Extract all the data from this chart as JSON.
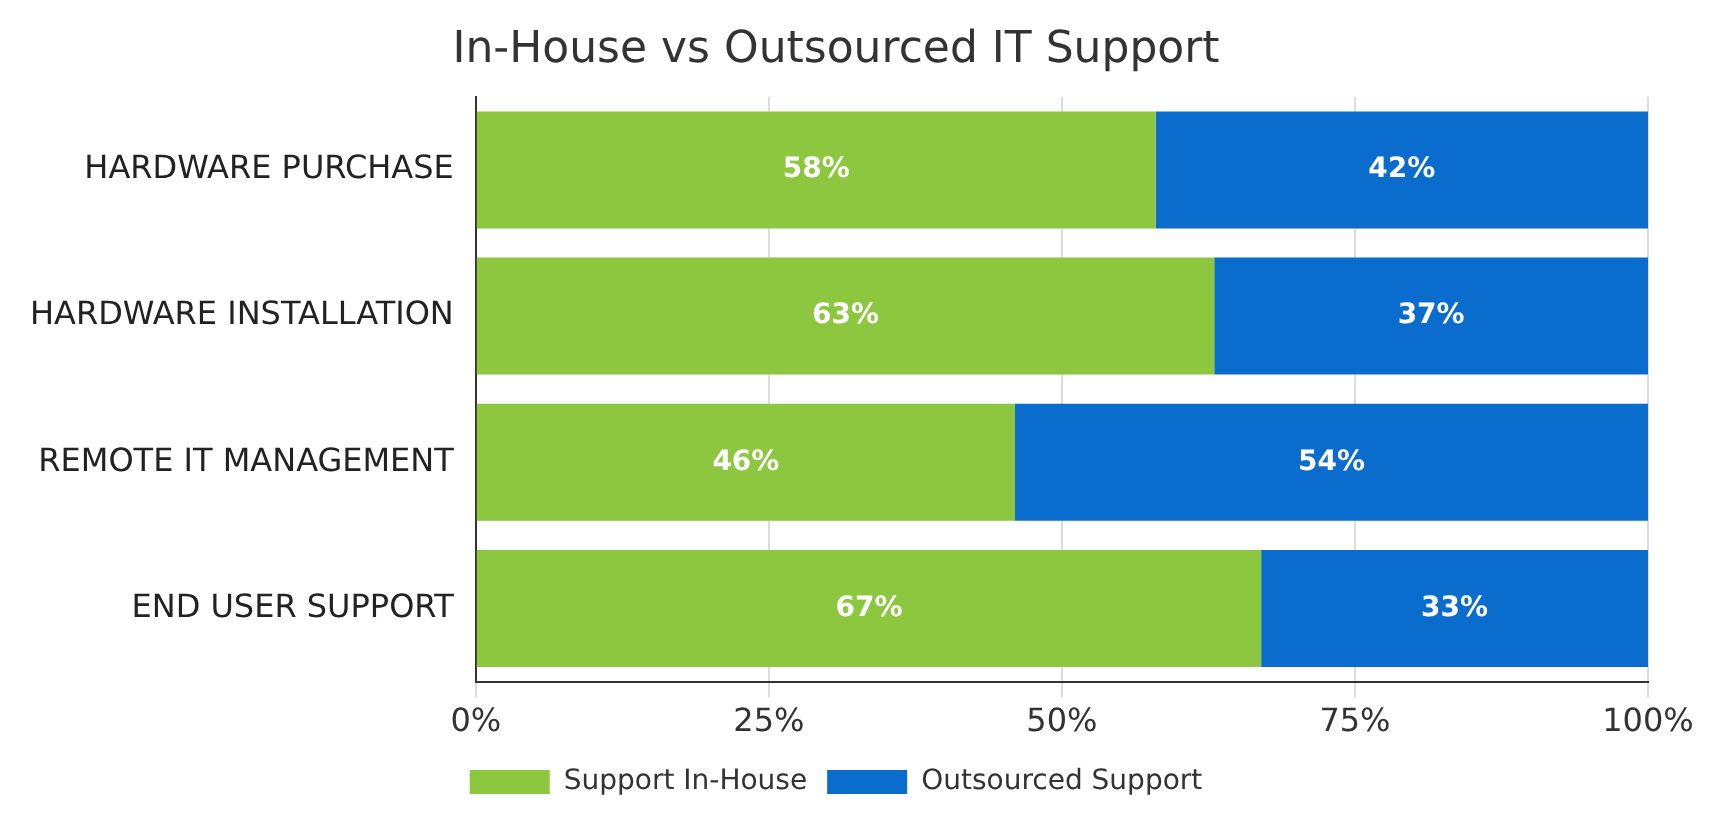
{
  "chart_data": {
    "type": "bar",
    "orientation": "horizontal",
    "stacked": true,
    "title": "In-House vs Outsourced IT Support",
    "categories": [
      "HARDWARE PURCHASE",
      "HARDWARE INSTALLATION",
      "REMOTE IT MANAGEMENT",
      "END USER SUPPORT"
    ],
    "series": [
      {
        "name": "Support In-House",
        "color": "#8dc63f",
        "values": [
          58,
          63,
          46,
          67
        ],
        "value_labels": [
          "58%",
          "63%",
          "46%",
          "67%"
        ]
      },
      {
        "name": "Outsourced Support",
        "color": "#0a6ccc",
        "values": [
          42,
          37,
          54,
          33
        ],
        "value_labels": [
          "42%",
          "37%",
          "54%",
          "33%"
        ]
      }
    ],
    "xlim": [
      0,
      100
    ],
    "xticks": [
      {
        "value": 0,
        "label": "0%"
      },
      {
        "value": 25,
        "label": "25%"
      },
      {
        "value": 50,
        "label": "50%"
      },
      {
        "value": 75,
        "label": "75%"
      },
      {
        "value": 100,
        "label": "100%"
      }
    ],
    "grid": "x",
    "legend": "bottom"
  }
}
